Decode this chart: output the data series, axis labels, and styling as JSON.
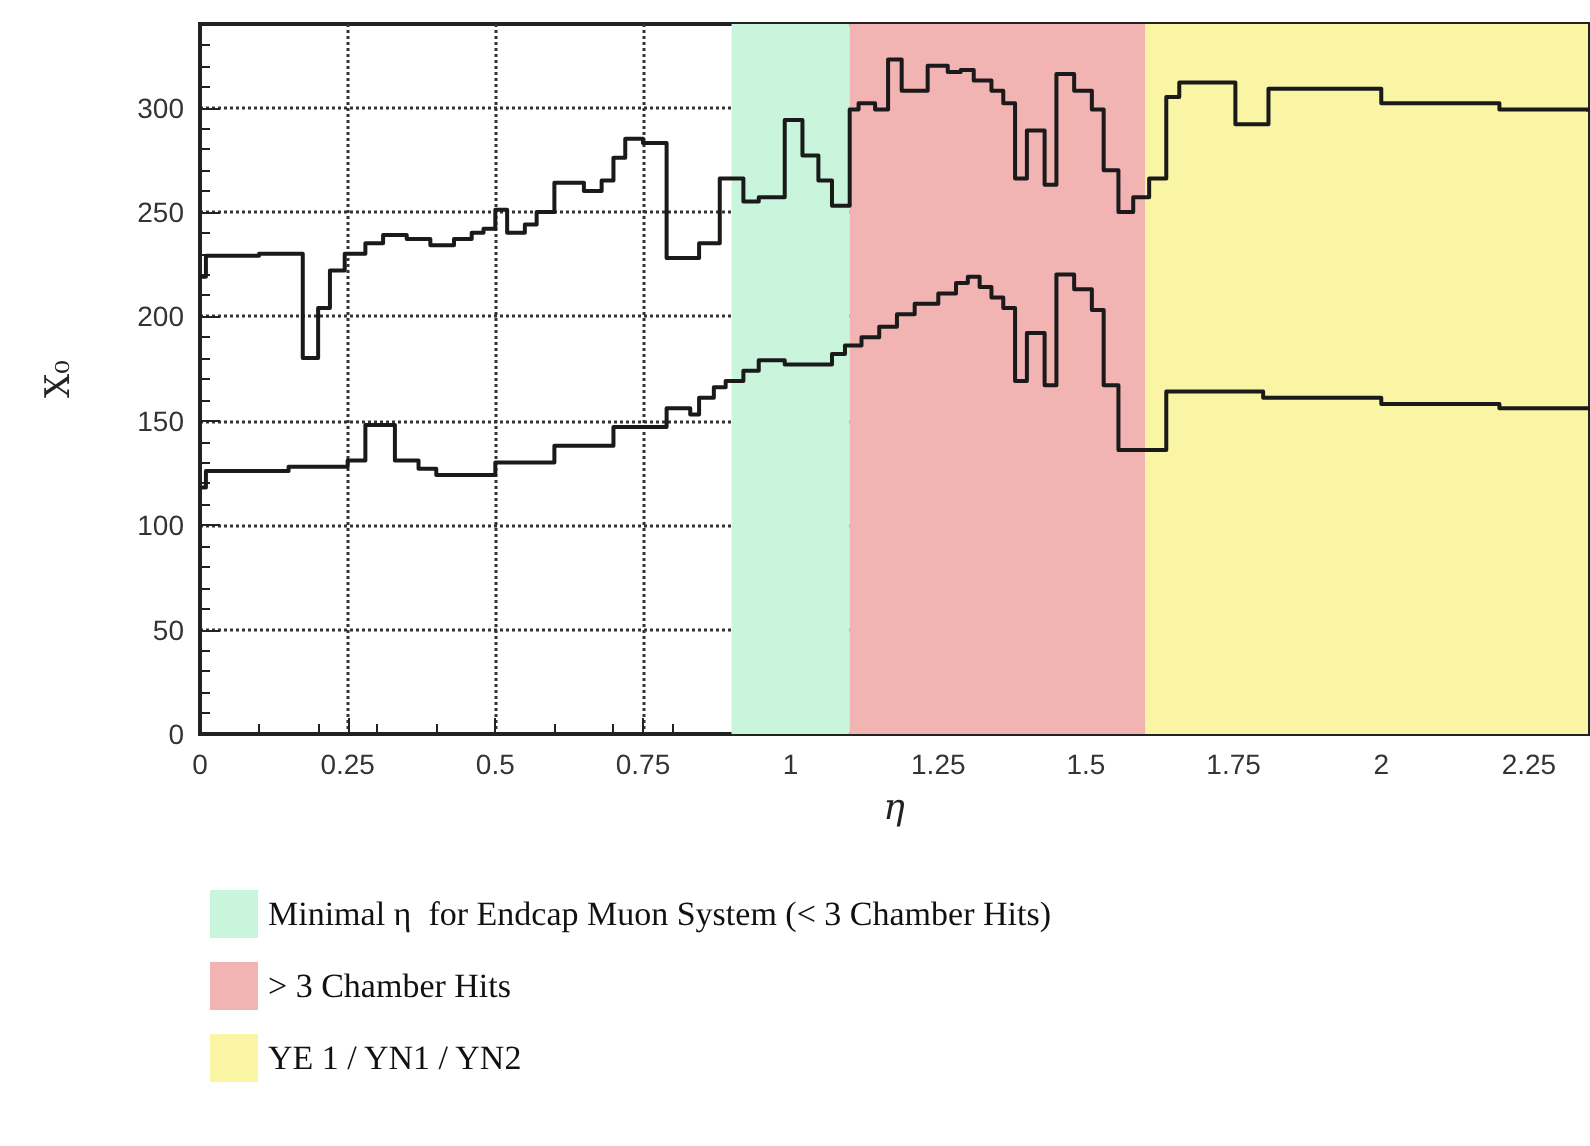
{
  "chart_data": {
    "type": "step",
    "xlabel": "η",
    "ylabel": "X₀",
    "xlim": [
      0,
      2.35
    ],
    "ylim": [
      0,
      340
    ],
    "xticks": [
      0,
      0.25,
      0.5,
      0.75,
      1,
      1.25,
      1.5,
      1.75,
      2,
      2.25
    ],
    "yticks": [
      0,
      50,
      100,
      150,
      200,
      250,
      300
    ],
    "grid": true,
    "legend": "bottom",
    "line_style": "solid",
    "marker": "none",
    "series": [
      {
        "color": "#1a1a1a",
        "x": [
          0,
          0.01,
          0.1,
          0.174,
          0.2,
          0.22,
          0.245,
          0.28,
          0.31,
          0.35,
          0.39,
          0.43,
          0.46,
          0.48,
          0.5,
          0.52,
          0.55,
          0.57,
          0.6,
          0.65,
          0.68,
          0.7,
          0.72,
          0.75,
          0.79,
          0.845,
          0.88,
          0.92,
          0.946,
          0.99,
          1.02,
          1.047,
          1.07,
          1.1,
          1.115,
          1.143,
          1.165,
          1.188,
          1.232,
          1.266,
          1.288,
          1.31,
          1.34,
          1.36,
          1.38,
          1.4,
          1.43,
          1.45,
          1.48,
          1.51,
          1.53,
          1.555,
          1.58,
          1.607,
          1.636,
          1.658,
          1.753,
          1.809,
          2.0,
          2.2,
          2.35
        ],
        "values": [
          219,
          229,
          230,
          180,
          204,
          222,
          230,
          235,
          239,
          237,
          234,
          237,
          240,
          242,
          251,
          240,
          244,
          250,
          264,
          260,
          265,
          276,
          285,
          283,
          228,
          235,
          266,
          255,
          257,
          294,
          277,
          265,
          253,
          299,
          302,
          299,
          323,
          308,
          320,
          317,
          318,
          313,
          308,
          302,
          266,
          289,
          263,
          316,
          308,
          299,
          270,
          250,
          257,
          266,
          305,
          312,
          292,
          309,
          302,
          299,
          298
        ]
      },
      {
        "color": "#1a1a1a",
        "x": [
          0,
          0.01,
          0.15,
          0.25,
          0.28,
          0.33,
          0.37,
          0.4,
          0.5,
          0.6,
          0.7,
          0.79,
          0.83,
          0.845,
          0.87,
          0.89,
          0.92,
          0.946,
          0.99,
          1.07,
          1.092,
          1.12,
          1.15,
          1.18,
          1.21,
          1.25,
          1.28,
          1.3,
          1.32,
          1.34,
          1.36,
          1.38,
          1.4,
          1.43,
          1.45,
          1.48,
          1.51,
          1.53,
          1.555,
          1.636,
          1.8,
          2.0,
          2.2,
          2.35
        ],
        "values": [
          118,
          126,
          128,
          131,
          148,
          131,
          127,
          124,
          130,
          138,
          147,
          156,
          153,
          161,
          166,
          169,
          174,
          179,
          177,
          182,
          186,
          190,
          195,
          201,
          206,
          211,
          216,
          219,
          214,
          209,
          204,
          169,
          192,
          167,
          220,
          213,
          203,
          167,
          136,
          164,
          161,
          158,
          156,
          155
        ]
      }
    ],
    "bands": [
      {
        "axis": "x",
        "from": 0.9,
        "to": 1.1,
        "label": "Minimal η  for Endcap Muon System (< 3 Chamber Hits)",
        "color": "#c8f5dc"
      },
      {
        "axis": "x",
        "from": 1.1,
        "to": 1.6,
        "label": "> 3 Chamber Hits",
        "color": "#f2b3b3"
      },
      {
        "axis": "x",
        "from": 1.6,
        "to": 2.35,
        "label": "YE 1 / YN1 / YN2",
        "color": "#faf5a5"
      }
    ]
  }
}
